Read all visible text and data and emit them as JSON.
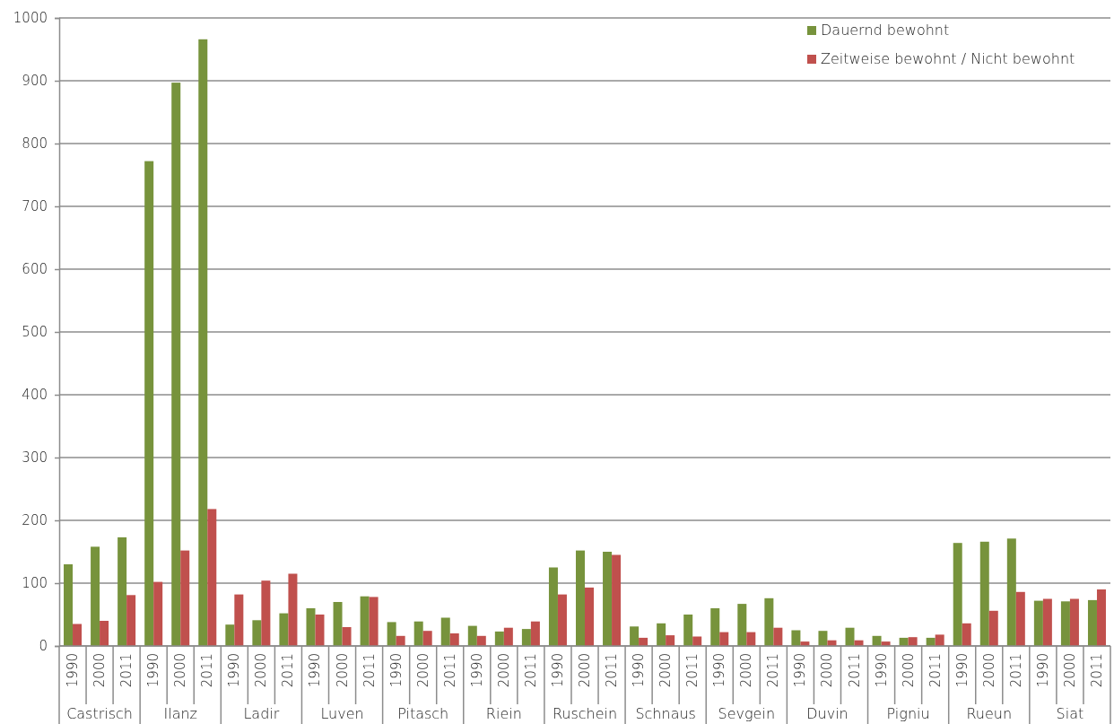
{
  "chart_data": {
    "type": "bar",
    "categories": [
      "1990",
      "2000",
      "2011",
      "1990",
      "2000",
      "2011",
      "1990",
      "2000",
      "2011",
      "1990",
      "2000",
      "2011",
      "1990",
      "2000",
      "2011",
      "1990",
      "2000",
      "2011",
      "1990",
      "2000",
      "2011",
      "1990",
      "2000",
      "2011",
      "1990",
      "2000",
      "2011",
      "1990",
      "2000",
      "2011",
      "1990",
      "2000",
      "2011",
      "1990",
      "2000",
      "2011",
      "1990",
      "2000",
      "2011"
    ],
    "annotations": [
      "Castrisch",
      "Ilanz",
      "Ladir",
      "Luven",
      "Pitasch",
      "Riein",
      "Ruschein",
      "Schnaus",
      "Sevgein",
      "Duvin",
      "Pigniu",
      "Rueun",
      "Siat"
    ],
    "series": [
      {
        "name": "Dauernd bewohnt",
        "color": "#77933c",
        "values": [
          130,
          158,
          173,
          772,
          897,
          966,
          34,
          41,
          52,
          60,
          70,
          79,
          38,
          39,
          45,
          32,
          23,
          27,
          125,
          152,
          150,
          31,
          36,
          50,
          60,
          67,
          76,
          25,
          24,
          29,
          16,
          13,
          13,
          164,
          166,
          171,
          72,
          71,
          73
        ]
      },
      {
        "name": "Zeitweise bewohnt / Nicht bewohnt",
        "color": "#c0504d",
        "values": [
          35,
          40,
          81,
          102,
          152,
          218,
          82,
          104,
          115,
          50,
          30,
          78,
          16,
          24,
          20,
          16,
          29,
          39,
          82,
          93,
          145,
          13,
          17,
          15,
          22,
          22,
          29,
          7,
          9,
          9,
          7,
          14,
          18,
          36,
          56,
          86,
          75,
          75,
          90
        ]
      }
    ],
    "ylim": [
      0,
      1000
    ],
    "yticks": [
      0,
      100,
      200,
      300,
      400,
      500,
      600,
      700,
      800,
      900,
      1000
    ],
    "grid": "y",
    "legend": "top right"
  }
}
